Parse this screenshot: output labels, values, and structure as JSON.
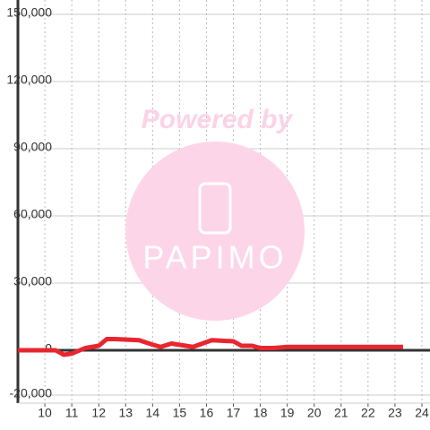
{
  "chart_data": {
    "type": "line",
    "x": [
      9,
      10.4,
      10.7,
      11,
      11.5,
      12,
      12.3,
      12.6,
      13.5,
      14,
      14.3,
      14.7,
      15.5,
      16.2,
      17,
      17.3,
      17.7,
      18,
      18.5,
      19,
      23.3
    ],
    "values": [
      0,
      0,
      -2000,
      -1500,
      1000,
      2000,
      5000,
      5000,
      4500,
      2500,
      1500,
      3000,
      1500,
      4500,
      4000,
      2000,
      2000,
      1000,
      1000,
      1500,
      1500
    ],
    "color": "#e8262f",
    "xlim": [
      9,
      24.3
    ],
    "xticks": [
      10,
      11,
      12,
      13,
      14,
      15,
      16,
      17,
      18,
      19,
      20,
      21,
      22,
      23,
      24
    ],
    "ylim": [
      -20000,
      150000
    ],
    "yticks": [
      {
        "value": -20000,
        "label": "-20,000"
      },
      0,
      {
        "value": 30000,
        "label": "30,000"
      },
      {
        "value": 60000,
        "label": "60,000"
      },
      {
        "value": 90000,
        "label": "90,000"
      },
      {
        "value": 120000,
        "label": "120,000"
      },
      {
        "value": 150000,
        "label": "150,000"
      }
    ],
    "grid": true,
    "watermark": {
      "top": "Powered by",
      "logo": "PAPIMO"
    }
  }
}
